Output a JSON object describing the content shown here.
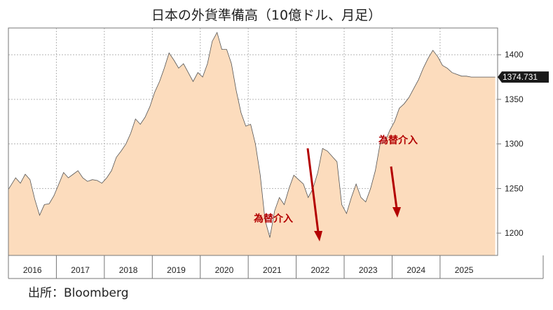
{
  "chart_data": {
    "type": "area",
    "title": "日本の外貨準備高（10億ドル、月足）",
    "source": "出所：Bloomberg",
    "ylim": [
      1175,
      1430
    ],
    "yticks": [
      1200,
      1250,
      1300,
      1350,
      1400
    ],
    "xlim": [
      2016.0,
      2026.2
    ],
    "x_labels": [
      "2016",
      "2017",
      "2018",
      "2019",
      "2020",
      "2021",
      "2022",
      "2023",
      "2024",
      "2025"
    ],
    "grid": true,
    "last_value_label": "1374.731",
    "series": [
      {
        "x": [
          2016.0,
          2016.15,
          2016.25,
          2016.35,
          2016.45,
          2016.55,
          2016.65,
          2016.75,
          2016.85,
          2016.95,
          2017.05,
          2017.15,
          2017.25,
          2017.35,
          2017.45,
          2017.55,
          2017.65,
          2017.75,
          2017.85,
          2017.95,
          2018.05,
          2018.15,
          2018.25,
          2018.35,
          2018.45,
          2018.55,
          2018.65,
          2018.75,
          2018.85,
          2018.95,
          2019.05,
          2019.15,
          2019.25,
          2019.35,
          2019.45,
          2019.55,
          2019.65,
          2019.75,
          2019.85,
          2019.95,
          2020.05,
          2020.15,
          2020.25,
          2020.35,
          2020.45,
          2020.55,
          2020.65,
          2020.75,
          2020.85,
          2020.95,
          2021.05,
          2021.15,
          2021.25,
          2021.35,
          2021.45,
          2021.55,
          2021.65,
          2021.75,
          2021.85,
          2021.95,
          2022.05,
          2022.15,
          2022.25,
          2022.35,
          2022.45,
          2022.55,
          2022.65,
          2022.75,
          2022.85,
          2022.95,
          2023.05,
          2023.15,
          2023.25,
          2023.35,
          2023.45,
          2023.55,
          2023.65,
          2023.75,
          2023.85,
          2023.95,
          2024.05,
          2024.15,
          2024.25,
          2024.35,
          2024.45,
          2024.55,
          2024.65,
          2024.75,
          2024.85,
          2024.95,
          2025.05,
          2025.15,
          2025.25,
          2025.35,
          2025.45,
          2025.55,
          2025.65,
          2025.75,
          2025.85,
          2025.95,
          2026.05,
          2026.15
        ],
        "values": [
          1249,
          1262,
          1256,
          1266,
          1260,
          1238,
          1220,
          1232,
          1233,
          1242,
          1255,
          1268,
          1262,
          1266,
          1270,
          1262,
          1258,
          1260,
          1259,
          1256,
          1262,
          1270,
          1285,
          1292,
          1300,
          1312,
          1328,
          1322,
          1330,
          1342,
          1358,
          1370,
          1385,
          1402,
          1394,
          1385,
          1390,
          1380,
          1370,
          1380,
          1375,
          1390,
          1415,
          1425,
          1406,
          1406,
          1390,
          1360,
          1335,
          1320,
          1322,
          1300,
          1265,
          1215,
          1195,
          1225,
          1240,
          1232,
          1250,
          1265,
          1260,
          1255,
          1240,
          1250,
          1268,
          1295,
          1292,
          1286,
          1280,
          1232,
          1222,
          1240,
          1255,
          1240,
          1235,
          1250,
          1270,
          1300,
          1302,
          1315,
          1325,
          1340,
          1345,
          1352,
          1362,
          1372,
          1385,
          1396,
          1405,
          1398,
          1388,
          1385,
          1380,
          1378,
          1376,
          1376,
          1375,
          1375,
          1375,
          1375,
          1375,
          1375
        ]
      }
    ],
    "annotations": [
      "為替介入",
      "為替介入"
    ]
  }
}
